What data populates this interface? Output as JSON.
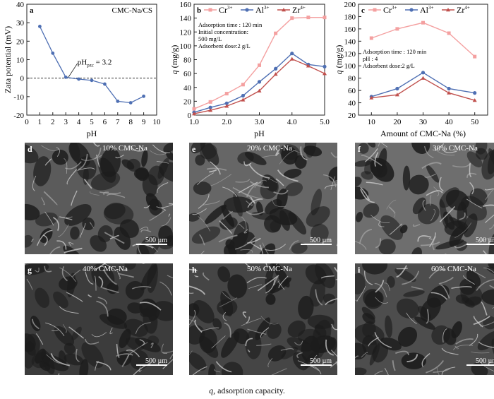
{
  "chart_data": [
    {
      "type": "line",
      "panel_label": "a",
      "annotation_tl": "CMC-Na/CS",
      "xlabel": "pH",
      "ylabel": "Zata potential (mV)",
      "xlim": [
        0,
        10
      ],
      "ylim": [
        -20,
        40
      ],
      "xticks": [
        0,
        1,
        2,
        3,
        4,
        5,
        6,
        7,
        8,
        9,
        10
      ],
      "yticks": [
        -20,
        -10,
        0,
        10,
        20,
        30,
        40
      ],
      "pzc_text": "pH",
      "pzc_sub": "pzc",
      "pzc_value": " = 3.2",
      "series": [
        {
          "x": [
            1,
            2,
            3,
            4,
            5,
            6,
            7,
            8,
            9
          ],
          "y": [
            28,
            13.5,
            0.5,
            -0.5,
            -1.2,
            -3.2,
            -12.5,
            -13.3,
            -9.8
          ],
          "color": "#4e6fb3"
        }
      ]
    },
    {
      "type": "line",
      "panel_label": "b",
      "xlabel": "pH",
      "ylabel_q": "q",
      "ylabel_unit": " (mg/g)",
      "xlim": [
        1,
        5
      ],
      "ylim": [
        0,
        160
      ],
      "xticks": [
        "1.0",
        "2.0",
        "3.0",
        "4.0",
        "5.0"
      ],
      "yticks": [
        0,
        20,
        40,
        60,
        80,
        100,
        120,
        140,
        160
      ],
      "annotations": [
        "Adsorption time : 120 min",
        "Initial concentration:",
        "500 mg/L",
        "Adsorbent dose:2 g/L"
      ],
      "legend": [
        {
          "base": "Cr",
          "sup": "3+"
        },
        {
          "base": "Al",
          "sup": "3+"
        },
        {
          "base": "Zr",
          "sup": "4+"
        }
      ],
      "x": [
        1.0,
        1.5,
        2.0,
        2.5,
        3.0,
        3.5,
        4.0,
        4.5,
        5.0
      ],
      "series": [
        {
          "color": "#f4a0a0",
          "marker": "square",
          "values": [
            9,
            19,
            31,
            44,
            72,
            118,
            140,
            141,
            141
          ]
        },
        {
          "color": "#4e6fb3",
          "marker": "circle",
          "values": [
            4,
            11,
            17,
            28,
            48,
            67,
            89,
            73,
            70
          ]
        },
        {
          "color": "#c0504d",
          "marker": "triangle",
          "values": [
            2,
            7,
            13,
            22,
            35,
            59,
            81,
            71,
            60
          ]
        }
      ]
    },
    {
      "type": "line",
      "panel_label": "c",
      "xlabel": "Amount of CMC-Na (%)",
      "ylabel_q": "q",
      "ylabel_unit": " (mg/g)",
      "xlim": [
        5,
        55
      ],
      "ylim": [
        20,
        200
      ],
      "xticks": [
        10,
        20,
        30,
        40,
        50
      ],
      "yticks": [
        20,
        40,
        60,
        80,
        100,
        120,
        140,
        160,
        180,
        200
      ],
      "annotations": [
        "Adsorption time : 120 min",
        "pH : 4",
        "Adsorbent dose:2 g/L"
      ],
      "legend": [
        {
          "base": "Cr",
          "sup": "3+"
        },
        {
          "base": "Al",
          "sup": "3+"
        },
        {
          "base": "Zr",
          "sup": "4+"
        }
      ],
      "x": [
        10,
        20,
        30,
        40,
        50
      ],
      "series": [
        {
          "color": "#f4a0a0",
          "marker": "square",
          "values": [
            145,
            160,
            170,
            153,
            115
          ]
        },
        {
          "color": "#4e6fb3",
          "marker": "circle",
          "values": [
            50,
            63,
            89,
            63,
            56
          ]
        },
        {
          "color": "#c0504d",
          "marker": "triangle",
          "values": [
            48,
            53,
            80,
            56,
            44
          ]
        }
      ]
    }
  ],
  "sem_panels": [
    {
      "label": "d",
      "title": "10% CMC-Na",
      "scale": "500 µm",
      "shade": "#5b5b5b"
    },
    {
      "label": "e",
      "title": "20% CMC-Na",
      "scale": "500 µm",
      "shade": "#666666"
    },
    {
      "label": "f",
      "title": "30% CMC-Na",
      "scale": "500 µm",
      "shade": "#6e6e6e"
    },
    {
      "label": "g",
      "title": "40% CMC-Na",
      "scale": "500 µm",
      "shade": "#3c3c3c"
    },
    {
      "label": "h",
      "title": "50% CMC-Na",
      "scale": "500 µm",
      "shade": "#454545"
    },
    {
      "label": "i",
      "title": "60% CMC-Na",
      "scale": "500 µm",
      "shade": "#4d4d4d"
    }
  ],
  "caption": {
    "q": "q",
    "rest": ", adsorption capacity."
  }
}
